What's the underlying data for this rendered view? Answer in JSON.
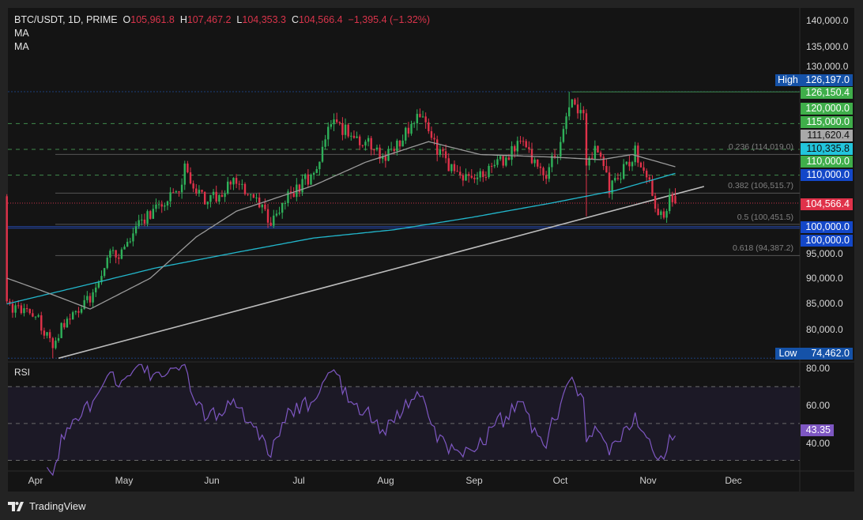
{
  "legend": {
    "symbol": "BTC/USDT, 1D, PRIME",
    "o_label": "O",
    "o": "105,961.8",
    "h_label": "H",
    "h": "107,467.2",
    "l_label": "L",
    "l": "104,353.3",
    "c_label": "C",
    "c": "104,566.4",
    "change": "−1,395.4 (−1.32%)",
    "ma1": "MA",
    "ma2": "MA"
  },
  "price_axis": [
    "140,000.0",
    "135,000.0",
    "130,000.0",
    "95,000.0",
    "90,000.0",
    "85,000.0",
    "80,000.0"
  ],
  "tags": [
    {
      "text": "126,197.0",
      "color": "#1552a8"
    },
    {
      "text": "126,150.4",
      "color": "#3fae4a"
    },
    {
      "text": "120,000.0",
      "color": "#3fae4a"
    },
    {
      "text": "115,000.0",
      "color": "#3fae4a"
    },
    {
      "text": "111,620.4",
      "color": "#a8a8a8"
    },
    {
      "text": "110,335.8",
      "color": "#22c5dc"
    },
    {
      "text": "110,000.0",
      "color": "#3fae4a"
    },
    {
      "text": "110,000.0",
      "color": "#1347c8"
    },
    {
      "text": "104,566.4",
      "color": "#e0324a"
    },
    {
      "text": "100,000.0",
      "color": "#1347c8"
    },
    {
      "text": "100,000.0",
      "color": "#1347c8"
    },
    {
      "text": "74,462.0",
      "color": "#1552a8"
    }
  ],
  "high_label": "High",
  "low_label": "Low",
  "fib": [
    {
      "text": "0.236 (114,019.0)",
      "price": 114019
    },
    {
      "text": "0.382 (106,515.7)",
      "price": 106515.7
    },
    {
      "text": "0.5 (100,451.5)",
      "price": 100451.5
    },
    {
      "text": "0.618 (94,387.2)",
      "price": 94387.2
    }
  ],
  "rsi": {
    "title": "RSI",
    "axis": [
      "80.00",
      "60.00",
      "40.00"
    ],
    "value": "43.35",
    "color": "#7e57c2"
  },
  "time_axis": [
    "Apr",
    "May",
    "Jun",
    "Jul",
    "Aug",
    "Sep",
    "Oct",
    "Nov",
    "Dec"
  ],
  "brand": "TradingView",
  "chart_data": {
    "type": "candlestick",
    "title": "BTC/USDT, 1D, PRIME",
    "ylim": [
      72000,
      142000
    ],
    "x_unit": "days since Apr 1",
    "close_anchors": [
      [
        -10,
        84500
      ],
      [
        0,
        83000
      ],
      [
        6,
        76500
      ],
      [
        9,
        80500
      ],
      [
        21,
        87500
      ],
      [
        25,
        94500
      ],
      [
        30,
        95000
      ],
      [
        37,
        101000
      ],
      [
        42,
        104000
      ],
      [
        50,
        106500
      ],
      [
        52,
        111000
      ],
      [
        60,
        104500
      ],
      [
        69,
        109000
      ],
      [
        77,
        104500
      ],
      [
        82,
        101000
      ],
      [
        90,
        107000
      ],
      [
        98,
        111000
      ],
      [
        101,
        117500
      ],
      [
        104,
        120000
      ],
      [
        110,
        118000
      ],
      [
        122,
        113500
      ],
      [
        131,
        119000
      ],
      [
        134,
        122000
      ],
      [
        140,
        114500
      ],
      [
        146,
        111000
      ],
      [
        152,
        108500
      ],
      [
        161,
        112000
      ],
      [
        170,
        116500
      ],
      [
        177,
        109500
      ],
      [
        183,
        116000
      ],
      [
        187,
        124500
      ],
      [
        191,
        121500
      ],
      [
        192,
        113000
      ],
      [
        196,
        115000
      ],
      [
        200,
        107500
      ],
      [
        205,
        111000
      ],
      [
        209,
        114500
      ],
      [
        214,
        108000
      ],
      [
        217,
        101000
      ],
      [
        219,
        103000
      ],
      [
        222,
        105900
      ]
    ],
    "last_candle": {
      "o": 105961.8,
      "h": 107467.2,
      "l": 104353.3,
      "c": 104566.4
    },
    "ma_slow": [
      [
        -10,
        85000
      ],
      [
        20,
        89000
      ],
      [
        42,
        92000
      ],
      [
        70,
        95000
      ],
      [
        97,
        97800
      ],
      [
        125,
        99400
      ],
      [
        152,
        101800
      ],
      [
        180,
        104600
      ],
      [
        202,
        107000
      ],
      [
        223,
        110335.8
      ]
    ],
    "ma_fast": [
      [
        -10,
        90000
      ],
      [
        5,
        87000
      ],
      [
        19,
        84000
      ],
      [
        40,
        90000
      ],
      [
        56,
        98000
      ],
      [
        70,
        103000
      ],
      [
        97,
        108000
      ],
      [
        115,
        112500
      ],
      [
        137,
        116500
      ],
      [
        155,
        114000
      ],
      [
        180,
        113500
      ],
      [
        197,
        113000
      ],
      [
        208,
        114000
      ],
      [
        223,
        111620.4
      ]
    ],
    "trendline": [
      [
        8,
        74462
      ],
      [
        233,
        107800
      ]
    ],
    "levels": {
      "high": 126197,
      "low": 74462,
      "resistance_green": [
        120000,
        115000,
        110000
      ],
      "blue": [
        100000,
        100000
      ],
      "last": 104566.4
    },
    "rsi_bands": [
      30,
      50,
      70
    ]
  }
}
